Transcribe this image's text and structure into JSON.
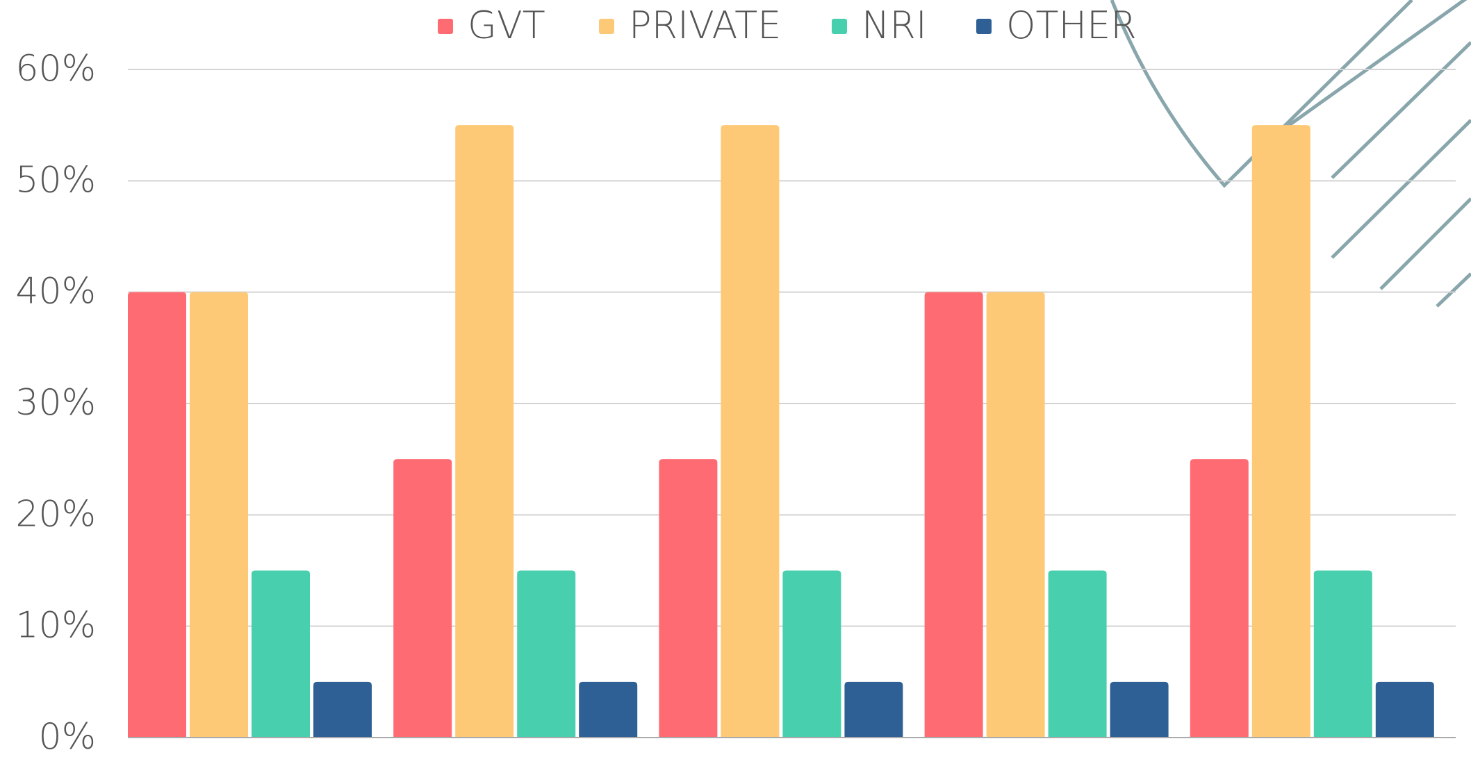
{
  "chart_data": {
    "type": "bar",
    "categories": [
      null,
      null,
      null,
      null,
      null
    ],
    "series": [
      {
        "name": "GVT",
        "color": "#ff6b72",
        "values": [
          40,
          25,
          25,
          40,
          25
        ]
      },
      {
        "name": "PRIVATE",
        "color": "#fec976",
        "values": [
          40,
          55,
          55,
          40,
          55
        ]
      },
      {
        "name": "NRI",
        "color": "#47cfae",
        "values": [
          15,
          15,
          15,
          15,
          15
        ]
      },
      {
        "name": "OTHER",
        "color": "#2e6096",
        "values": [
          5,
          5,
          5,
          5,
          5
        ]
      }
    ],
    "ylim": [
      0,
      60
    ],
    "yticks": [
      {
        "value": 0,
        "label": "0%"
      },
      {
        "value": 10,
        "label": "10%"
      },
      {
        "value": 20,
        "label": "20%"
      },
      {
        "value": 30,
        "label": "30%"
      },
      {
        "value": 40,
        "label": "40%"
      },
      {
        "value": 50,
        "label": "50%"
      },
      {
        "value": 60,
        "label": "60%"
      }
    ],
    "grid": true,
    "legend": "top"
  }
}
